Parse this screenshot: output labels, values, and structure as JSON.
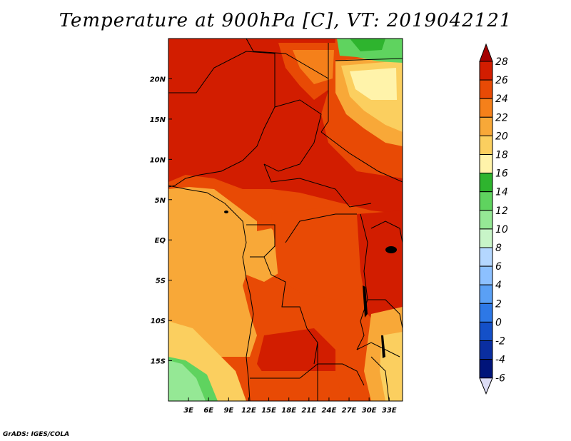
{
  "title": "Temperature at 900hPa [C], VT: 2019042121",
  "credit": "GrADS: IGES/COLA",
  "map": {
    "lon_labels": [
      "3E",
      "6E",
      "9E",
      "12E",
      "15E",
      "18E",
      "21E",
      "24E",
      "27E",
      "30E",
      "33E"
    ],
    "lat_labels": [
      "20N",
      "15N",
      "10N",
      "5N",
      "EQ",
      "5S",
      "10S",
      "15S"
    ],
    "lon_range": [
      0,
      35
    ],
    "lat_range": [
      -20,
      25
    ]
  },
  "colorbar": {
    "labels": [
      "28",
      "26",
      "24",
      "22",
      "20",
      "18",
      "16",
      "14",
      "12",
      "10",
      "8",
      "6",
      "4",
      "2",
      "0",
      "-2",
      "-4",
      "-6"
    ],
    "colors": [
      "#a50000",
      "#d21d00",
      "#e84a05",
      "#f5801a",
      "#f8a838",
      "#fbcf5f",
      "#fff3aa",
      "#2eb42e",
      "#5fd35f",
      "#95e895",
      "#c8f5c8",
      "#b4d7ff",
      "#8cc0ff",
      "#5aa0f5",
      "#2d78e6",
      "#1450c8",
      "#0a2ea0",
      "#00147a",
      "#000050",
      "#dcdcf5"
    ]
  },
  "colors": {
    "dominant_north": "#d21d00",
    "central_basin": "#e84a05",
    "coast_and_south": "#f8a838",
    "highlands": "#fbcf5f",
    "ocean_cool": "#5fd35f"
  }
}
